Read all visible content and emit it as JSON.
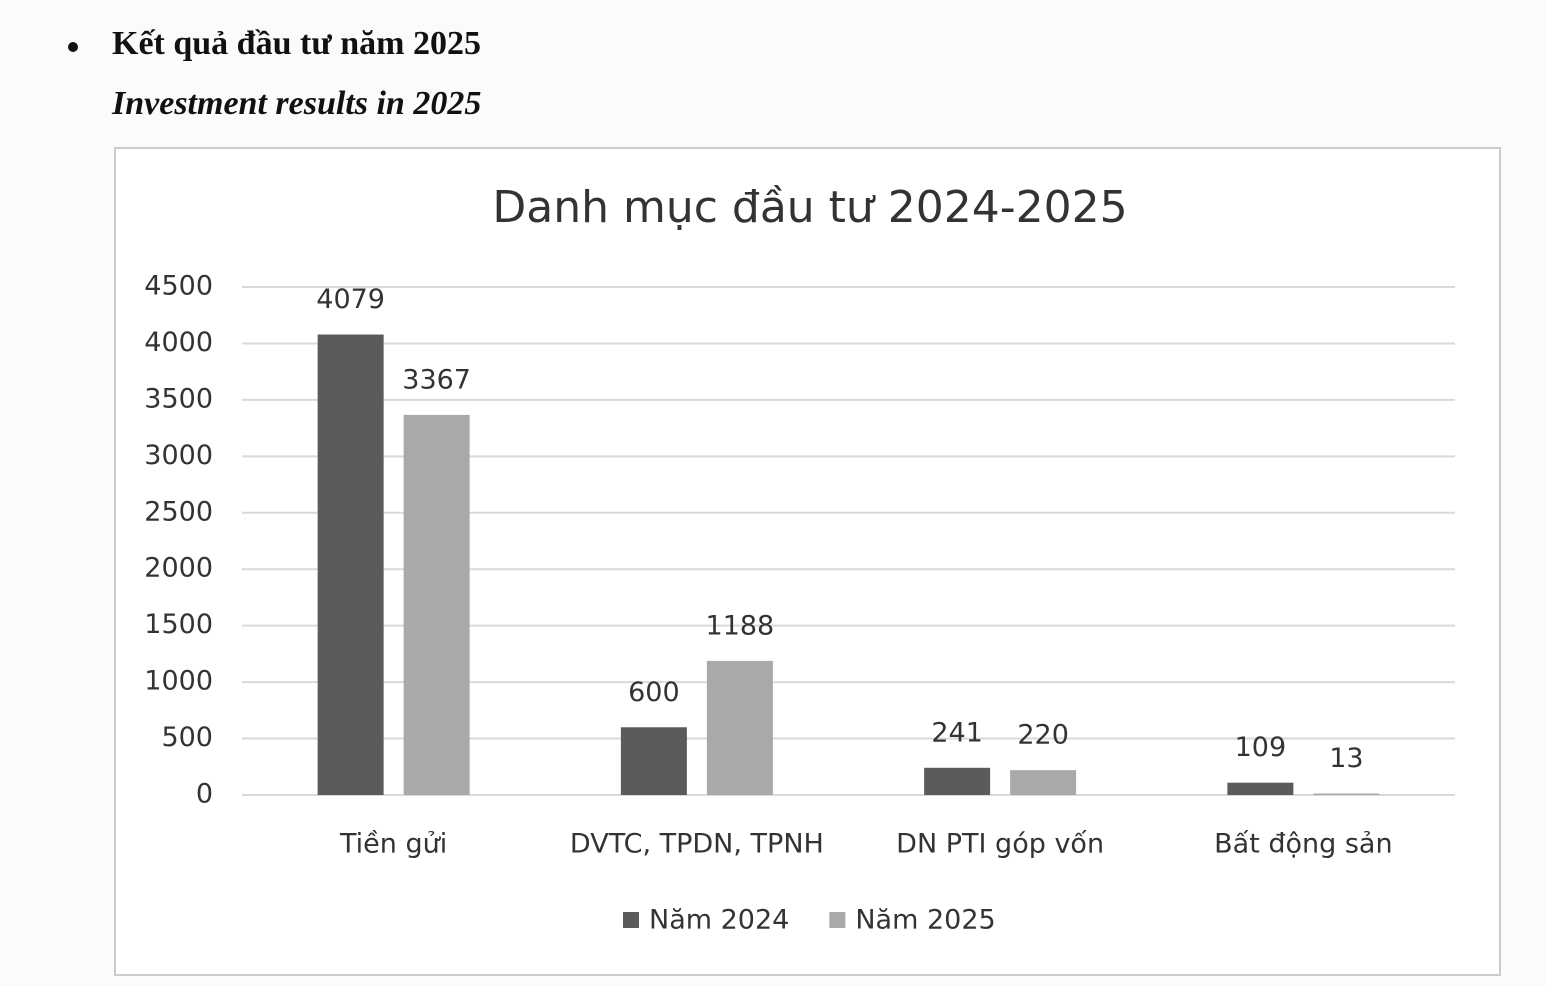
{
  "heading": "Kết quả đầu tư năm 2025",
  "subheading": "Investment results in 2025",
  "chart_data": {
    "type": "bar",
    "title": "Danh mục đầu tư 2024-2025",
    "categories": [
      "Tiền gửi",
      "DVTC, TPDN, TPNH",
      "DN PTI góp vốn",
      "Bất động sản"
    ],
    "series": [
      {
        "name": "Năm 2024",
        "color": "#5b5b5b",
        "values": [
          4079,
          600,
          241,
          109
        ]
      },
      {
        "name": "Năm 2025",
        "color": "#a9a9a9",
        "values": [
          3367,
          1188,
          220,
          13
        ]
      }
    ],
    "ylim": [
      0,
      4500
    ],
    "yticks": [
      0,
      500,
      1000,
      1500,
      2000,
      2500,
      3000,
      3500,
      4000,
      4500
    ],
    "grid": true,
    "legend": "bottom"
  }
}
